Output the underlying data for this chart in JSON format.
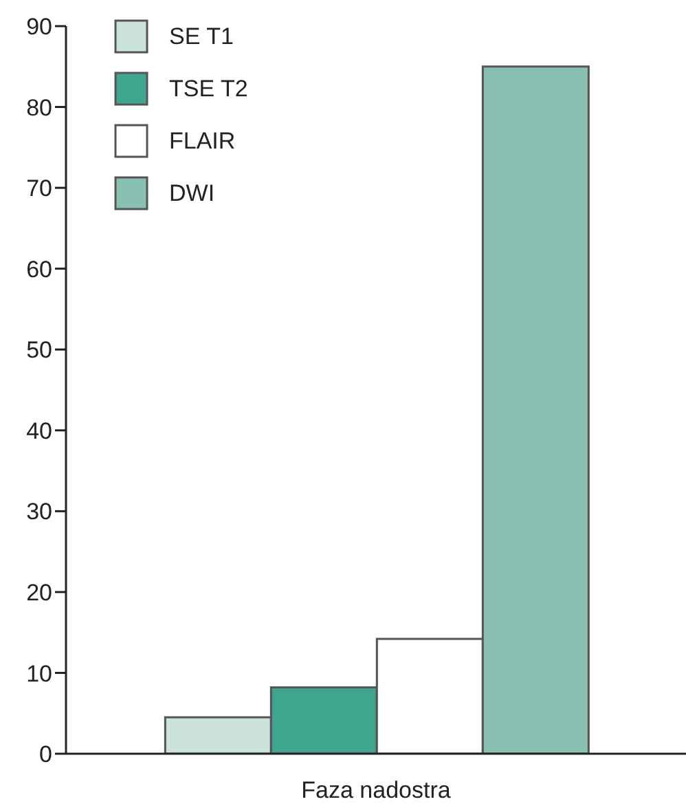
{
  "chart_data": {
    "type": "bar",
    "categories": [
      "Faza nadostra"
    ],
    "series": [
      {
        "name": "SE T1",
        "color": "#cce3dc",
        "values": [
          4.5
        ]
      },
      {
        "name": "TSE T2",
        "color": "#40a58e",
        "values": [
          8.2
        ]
      },
      {
        "name": "FLAIR",
        "color": "#ffffff",
        "values": [
          14.2
        ]
      },
      {
        "name": "DWI",
        "color": "#88c1b1",
        "values": [
          85
        ]
      }
    ],
    "ylim": [
      0,
      90
    ],
    "yticks": [
      0,
      10,
      20,
      30,
      40,
      50,
      60,
      70,
      80,
      90
    ],
    "grid": false,
    "legend": "top left"
  }
}
